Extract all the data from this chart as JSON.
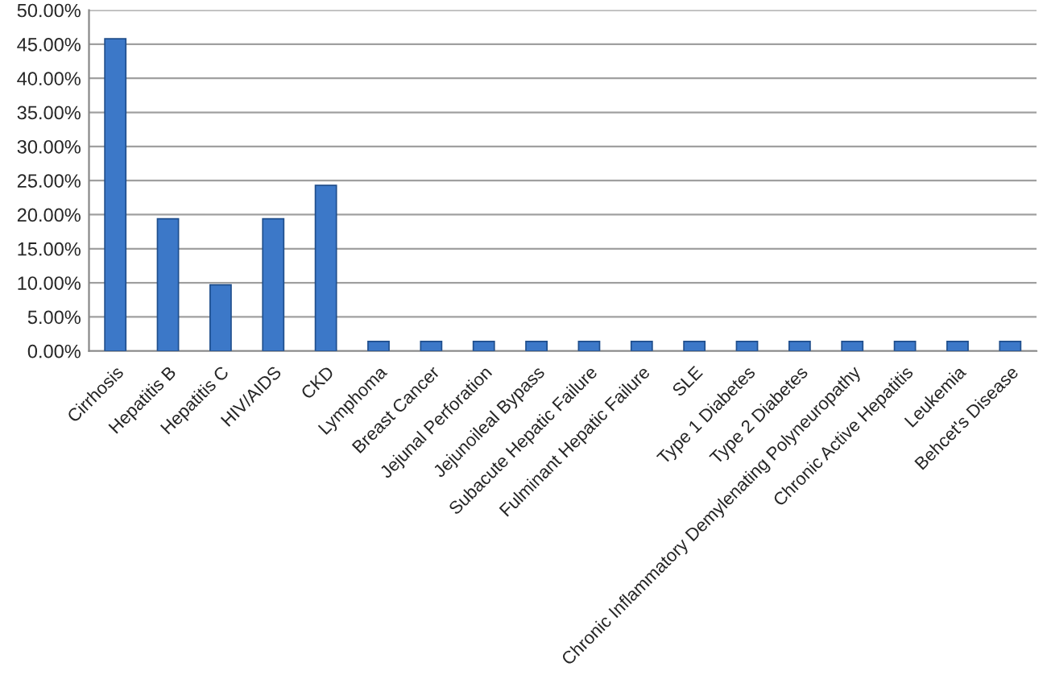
{
  "chart_data": {
    "type": "bar",
    "categories": [
      "Cirrhosis",
      "Hepatitis B",
      "Hepatitis C",
      "HIV/AIDS",
      "CKD",
      "Lymphoma",
      "Breast Cancer",
      "Jejunal Perforation",
      "Jejunoileal Bypass",
      "Subacute Hepatic Failure",
      "Fulminant Hepatic Failure",
      "SLE",
      "Type 1 Diabetes",
      "Type 2 Diabetes",
      "Chronic Inflammatory Demylenating Polyneuropathy",
      "Chronic Active Hepatitis",
      "Leukemia",
      "Behcet's Disease"
    ],
    "values": [
      45.8,
      19.4,
      9.7,
      19.4,
      24.3,
      1.4,
      1.4,
      1.4,
      1.4,
      1.4,
      1.4,
      1.4,
      1.4,
      1.4,
      1.4,
      1.4,
      1.4,
      1.4
    ],
    "color": "#3c78c8",
    "ylim": [
      0,
      50
    ],
    "yticks": [
      {
        "value": 0,
        "label": "0.00%"
      },
      {
        "value": 5,
        "label": "5.00%"
      },
      {
        "value": 10,
        "label": "10.00%"
      },
      {
        "value": 15,
        "label": "15.00%"
      },
      {
        "value": 20,
        "label": "20.00%"
      },
      {
        "value": 25,
        "label": "25.00%"
      },
      {
        "value": 30,
        "label": "30.00%"
      },
      {
        "value": 35,
        "label": "35.00%"
      },
      {
        "value": 40,
        "label": "40.00%"
      },
      {
        "value": 45,
        "label": "45.00%"
      },
      {
        "value": 50,
        "label": "50.00%"
      }
    ],
    "grid": "y"
  }
}
